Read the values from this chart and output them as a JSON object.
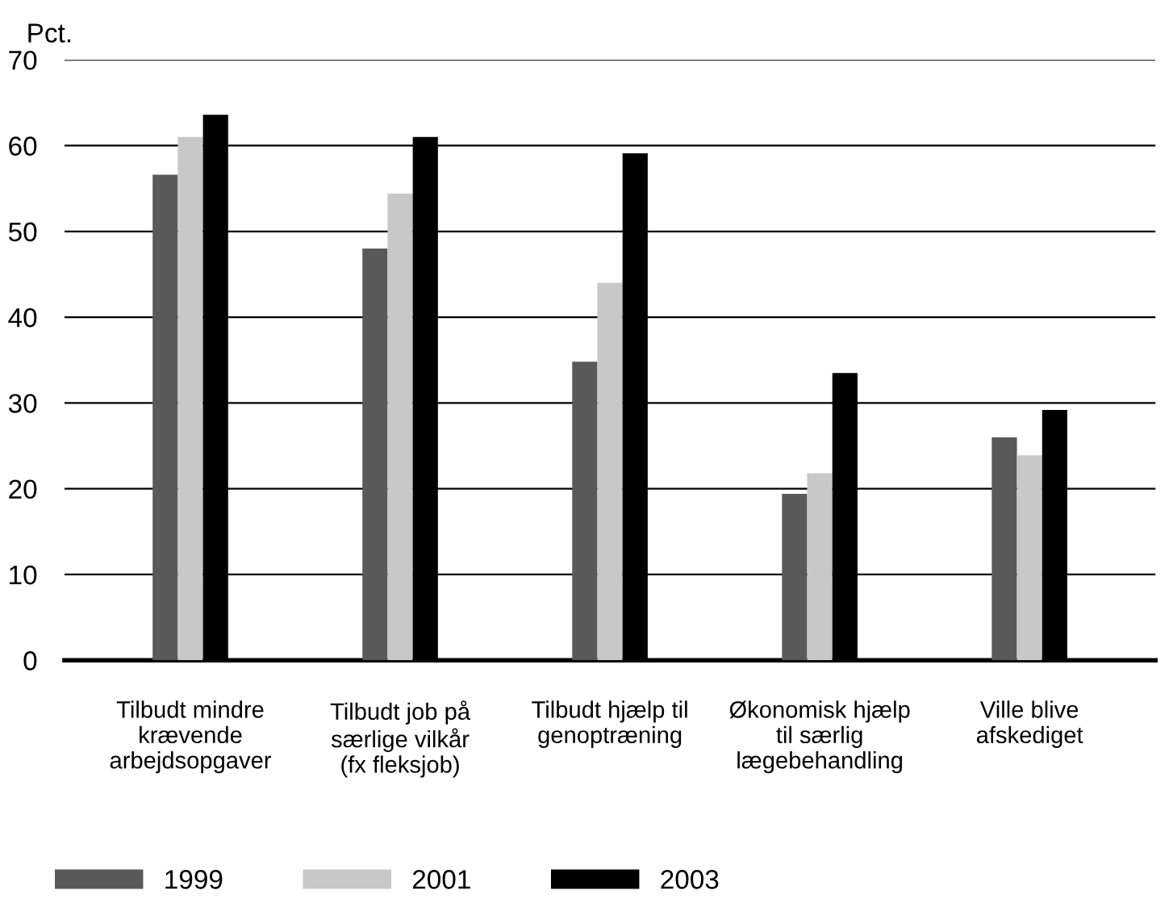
{
  "chart_data": {
    "type": "bar",
    "ylabel": "Pct.",
    "categories": [
      "Tilbudt mindre\nkrævende\narbejdsopgaver",
      "Tilbudt job på\nsærlige vilkår\n(fx fleksjob)",
      "Tilbudt hjælp til\ngenoptræning",
      "Økonomisk hjælp\ntil særlig\nlægebehandling",
      "Ville blive\nafskediget"
    ],
    "series": [
      {
        "name": "1999",
        "color": "#595959",
        "values": [
          56.6,
          48.0,
          34.8,
          19.4,
          26.0
        ]
      },
      {
        "name": "2001",
        "color": "#c8c8c8",
        "values": [
          61.0,
          54.4,
          44.0,
          21.8,
          23.9
        ]
      },
      {
        "name": "2003",
        "color": "#000000",
        "values": [
          63.6,
          61.0,
          59.1,
          33.5,
          29.2
        ]
      }
    ],
    "ylim": [
      0,
      70
    ],
    "yticks": [
      0,
      10,
      20,
      30,
      40,
      50,
      60,
      70
    ],
    "grid": "y",
    "legend": "bottom"
  }
}
